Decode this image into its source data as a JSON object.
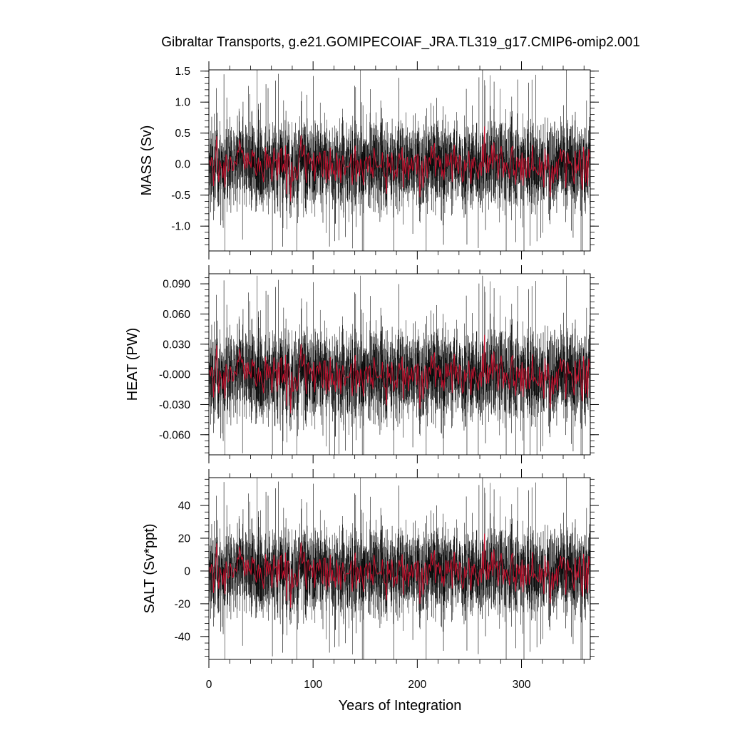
{
  "title": "Gibraltar Transports, g.e21.GOMIPECOIAF_JRA.TL319_g17.CMIP6-omip2.001",
  "xlabel": "Years of Integration",
  "colors": {
    "raw_series": "#000000",
    "smoothed_series": "#c8102e",
    "axes": "#000000",
    "background": "#ffffff"
  },
  "chart_data": [
    {
      "type": "line",
      "panel": "MASS",
      "ylabel": "MASS (Sv)",
      "xlim": [
        0,
        366
      ],
      "ylim": [
        -1.4,
        1.52
      ],
      "x_ticks": [
        0,
        100,
        200,
        300
      ],
      "x_tick_labels": [
        "",
        "",
        "",
        ""
      ],
      "y_ticks": [
        1.5,
        1.0,
        0.5,
        0.0,
        -0.5,
        -1.0
      ],
      "y_tick_labels": [
        "1.5",
        "1.0",
        "0.5",
        "0.0",
        "-0.5",
        "-1.0"
      ],
      "grid": false,
      "series": [
        {
          "style": "raw",
          "n_points": 4392,
          "color": "#000000",
          "mean": 0.0,
          "typical_range": [
            -0.6,
            0.6
          ],
          "extremes": [
            -1.4,
            1.52
          ]
        },
        {
          "style": "smoothed",
          "n_points": 366,
          "color": "#c8102e",
          "mean": 0.0,
          "typical_range": [
            -0.2,
            0.25
          ]
        }
      ]
    },
    {
      "type": "line",
      "panel": "HEAT",
      "ylabel": "HEAT (PW)",
      "xlim": [
        0,
        366
      ],
      "ylim": [
        -0.08,
        0.1
      ],
      "x_ticks": [
        0,
        100,
        200,
        300
      ],
      "x_tick_labels": [
        "",
        "",
        "",
        ""
      ],
      "y_ticks": [
        0.09,
        0.06,
        0.03,
        0.0,
        -0.03,
        -0.06
      ],
      "y_tick_labels": [
        "0.090",
        "0.060",
        "0.030",
        "-0.000",
        "-0.030",
        "-0.060"
      ],
      "grid": false,
      "series": [
        {
          "style": "raw",
          "n_points": 4392,
          "color": "#000000",
          "mean": 0.0,
          "typical_range": [
            -0.04,
            0.04
          ],
          "extremes": [
            -0.08,
            0.098
          ]
        },
        {
          "style": "smoothed",
          "n_points": 366,
          "color": "#c8102e",
          "mean": 0.0,
          "typical_range": [
            -0.015,
            0.017
          ]
        }
      ]
    },
    {
      "type": "line",
      "panel": "SALT",
      "ylabel": "SALT (Sv*ppt)",
      "xlim": [
        0,
        366
      ],
      "ylim": [
        -54,
        57
      ],
      "x_ticks": [
        0,
        100,
        200,
        300
      ],
      "x_tick_labels": [
        "0",
        "100",
        "200",
        "300"
      ],
      "y_ticks": [
        40,
        20,
        0,
        -20,
        -40
      ],
      "y_tick_labels": [
        "40",
        "20",
        "0",
        "-20",
        "-40"
      ],
      "grid": false,
      "series": [
        {
          "style": "raw",
          "n_points": 4392,
          "color": "#000000",
          "mean": 0.0,
          "typical_range": [
            -25,
            25
          ],
          "extremes": [
            -54,
            57
          ]
        },
        {
          "style": "smoothed",
          "n_points": 366,
          "color": "#c8102e",
          "mean": 0.0,
          "typical_range": [
            -9,
            10
          ]
        }
      ]
    }
  ]
}
